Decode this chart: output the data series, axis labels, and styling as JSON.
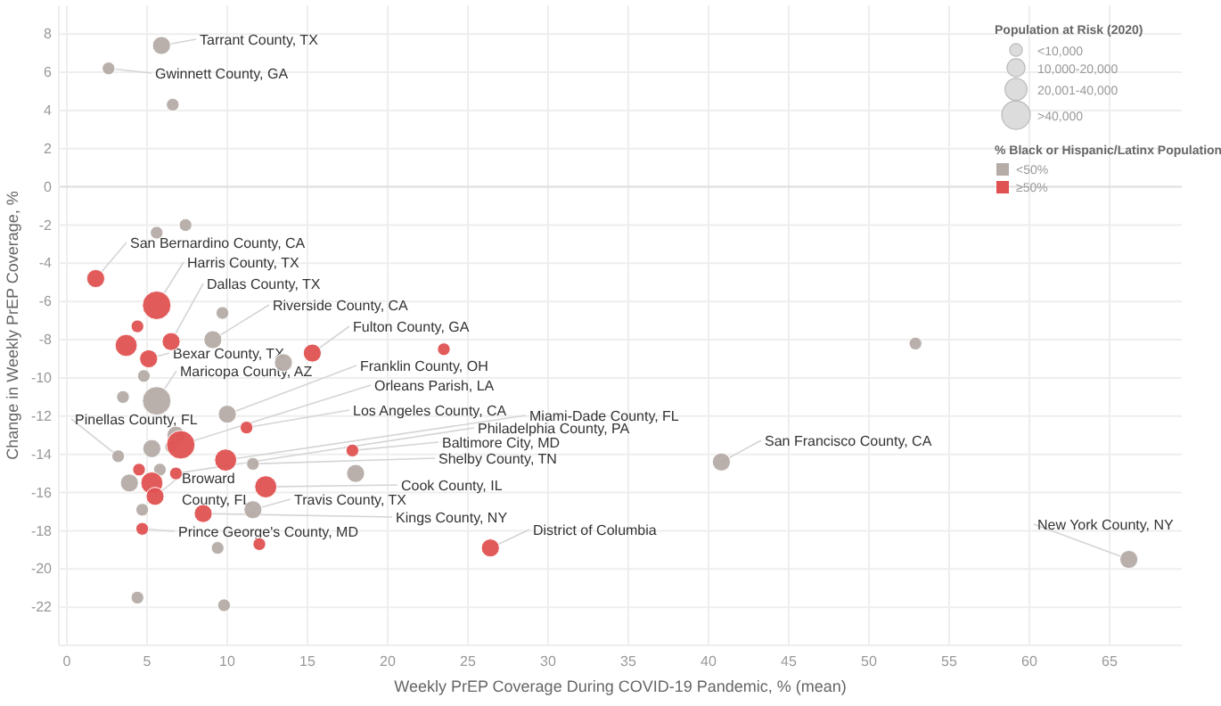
{
  "chart_data": {
    "type": "bubble",
    "xlabel": "Weekly PrEP Coverage During COVID-19 Pandemic, % (mean)",
    "ylabel": "Change in Weekly PrEP Coverage, %",
    "xlim": [
      -0.5,
      69.5
    ],
    "xticks": [
      0,
      5,
      10,
      15,
      20,
      25,
      30,
      35,
      40,
      45,
      50,
      55,
      60,
      65
    ],
    "ylim": [
      -24,
      9.5
    ],
    "yticks": [
      -22,
      -20,
      -18,
      -16,
      -14,
      -12,
      -10,
      -8,
      -6,
      -4,
      -2,
      0,
      2,
      4,
      6,
      8
    ],
    "grid": true,
    "legend": "top right",
    "legend_title": "% Black or Hispanic/Latinx Population",
    "size_legend": [
      {
        "value": 0.2,
        "label": "<10,000"
      },
      {
        "value": 0.4,
        "label": "10,000-20,000"
      },
      {
        "value": 0.6,
        "label": "20,001-40,000"
      },
      {
        "value": 1,
        "label": ">40,000"
      }
    ],
    "series": [
      {
        "name": "<50%",
        "color": "#b5aca8",
        "x": [
          5.9,
          2.6,
          6.6,
          5.6,
          7.4,
          9.7,
          9.1,
          13.5,
          4.8,
          3.5,
          5.6,
          10.0,
          6.8,
          5.3,
          6.5,
          3.2,
          11.6,
          18.0,
          5.8,
          3.9,
          4.7,
          11.6,
          9.4,
          4.4,
          9.8,
          52.9,
          40.8,
          66.2
        ],
        "values": [
          7.4,
          6.2,
          4.3,
          -2.4,
          -2.0,
          -6.6,
          -8.0,
          -9.2,
          -9.9,
          -11.0,
          -11.2,
          -11.9,
          -13.0,
          -13.7,
          -13.6,
          -14.1,
          -14.5,
          -15.0,
          -14.8,
          -15.5,
          -16.9,
          -16.9,
          -18.9,
          -21.5,
          -21.9,
          -8.2,
          -14.4,
          -19.5
        ],
        "sizes": [
          0.4,
          0.2,
          0.2,
          0.2,
          0.2,
          0.2,
          0.4,
          0.4,
          0.2,
          0.2,
          1,
          0.4,
          0.4,
          0.4,
          0.2,
          0.2,
          0.2,
          0.4,
          0.2,
          0.4,
          0.2,
          0.4,
          0.2,
          0.2,
          0.2,
          0.2,
          0.4,
          0.4
        ]
      },
      {
        "name": "≥50%",
        "color": "#e05252",
        "x": [
          1.8,
          5.6,
          4.4,
          3.7,
          6.5,
          15.3,
          23.5,
          5.1,
          11.2,
          7.1,
          17.8,
          9.9,
          4.5,
          6.8,
          5.3,
          5.5,
          12.4,
          8.5,
          4.7,
          12.0,
          26.4
        ],
        "values": [
          -4.8,
          -6.2,
          -7.3,
          -8.3,
          -8.1,
          -8.7,
          -8.5,
          -9.0,
          -12.6,
          -13.5,
          -13.8,
          -14.3,
          -14.8,
          -15.0,
          -15.5,
          -16.2,
          -15.7,
          -17.1,
          -17.9,
          -18.7,
          -18.9
        ],
        "sizes": [
          0.4,
          1,
          0.2,
          0.6,
          0.4,
          0.4,
          0.2,
          0.4,
          0.2,
          1,
          0.2,
          0.6,
          0.2,
          0.2,
          0.6,
          0.4,
          0.6,
          0.4,
          0.2,
          0.2,
          0.4
        ]
      }
    ],
    "annotations": [
      {
        "text": "Tarrant County, TX",
        "x": 5.9,
        "y": 7.4
      },
      {
        "text": "Gwinnett County, GA",
        "x": 2.6,
        "y": 6.2
      },
      {
        "text": "San Bernardino County, CA",
        "x": 1.8,
        "y": -4.8
      },
      {
        "text": "Harris County, TX",
        "x": 5.6,
        "y": -6.2
      },
      {
        "text": "Dallas County, TX",
        "x": 6.5,
        "y": -8.1
      },
      {
        "text": "Riverside County, CA",
        "x": 9.1,
        "y": -8.0
      },
      {
        "text": "Fulton County, GA",
        "x": 15.3,
        "y": -8.7
      },
      {
        "text": "Bexar County, TX",
        "x": 5.1,
        "y": -9.0
      },
      {
        "text": "Maricopa County, AZ",
        "x": 5.6,
        "y": -11.2
      },
      {
        "text": "Franklin County, OH",
        "x": 10.0,
        "y": -11.9
      },
      {
        "text": "Orleans Parish, LA",
        "x": 7.1,
        "y": -13.5
      },
      {
        "text": "Los Angeles County, CA",
        "x": 11.2,
        "y": -12.6
      },
      {
        "text": "Miami-Dade County, FL",
        "x": 9.9,
        "y": -14.3
      },
      {
        "text": "Philadelphia County, PA",
        "x": 6.8,
        "y": -15.0
      },
      {
        "text": "Baltimore City, MD",
        "x": 17.8,
        "y": -13.8
      },
      {
        "text": "Shelby County, TN",
        "x": 11.6,
        "y": -14.5
      },
      {
        "text": "Pinellas County, FL",
        "x": 3.2,
        "y": -14.1
      },
      {
        "text": "Broward County, FL",
        "x": 5.5,
        "y": -16.2
      },
      {
        "text": "Cook County, IL",
        "x": 12.4,
        "y": -15.7
      },
      {
        "text": "Travis County, TX",
        "x": 11.6,
        "y": -16.9
      },
      {
        "text": "Kings County, NY",
        "x": 8.5,
        "y": -17.1
      },
      {
        "text": "Prince George's County, MD",
        "x": 4.7,
        "y": -17.9
      },
      {
        "text": "District of Columbia",
        "x": 26.4,
        "y": -18.9
      },
      {
        "text": "San Francisco County, CA",
        "x": 40.8,
        "y": -14.4
      },
      {
        "text": "New York County, NY",
        "x": 66.2,
        "y": -19.5
      },
      "Population at Risk (2020)"
    ]
  }
}
